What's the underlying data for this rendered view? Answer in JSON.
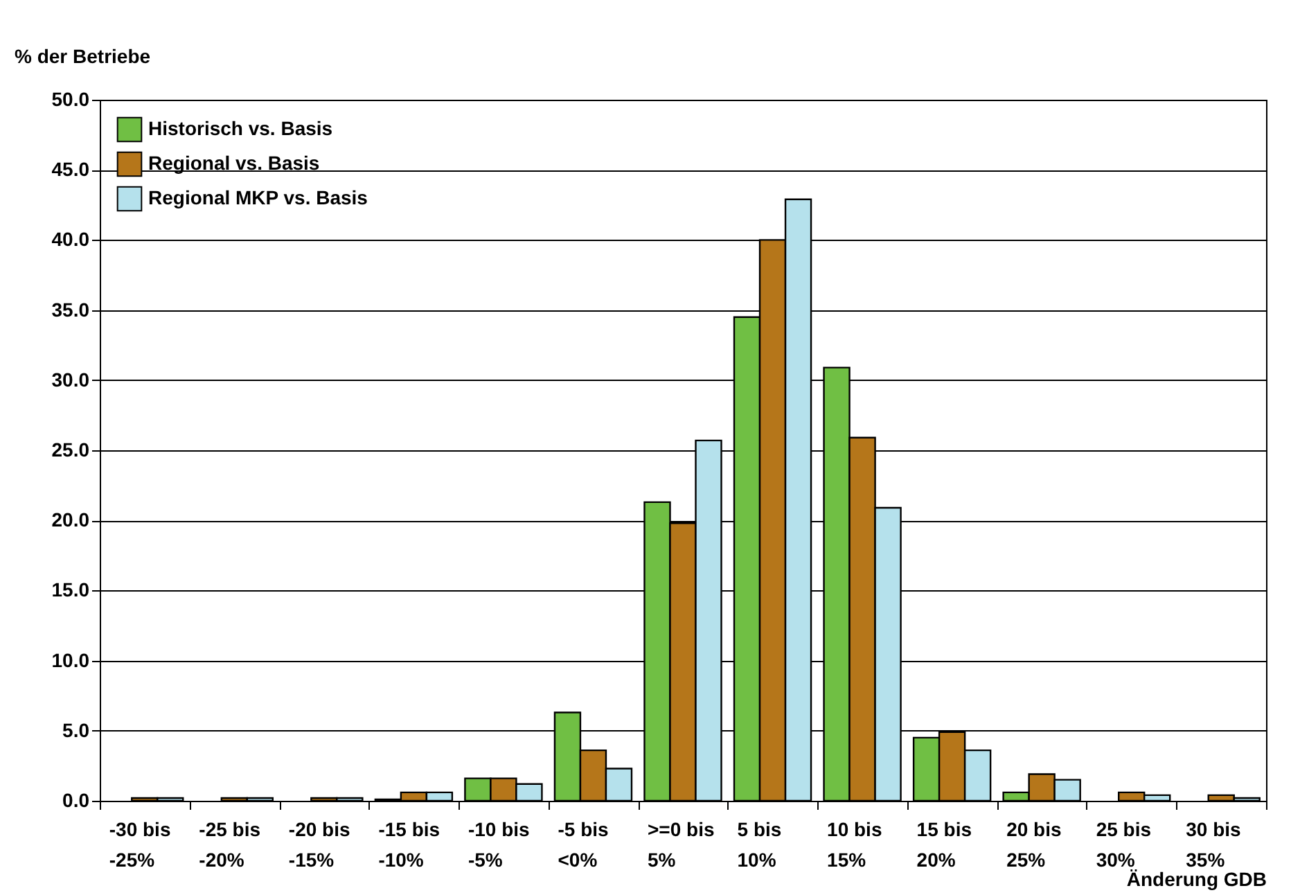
{
  "chart_data": {
    "type": "bar",
    "ylabel": "% der Betriebe",
    "xlabel": "Änderung GDB",
    "categories": [
      "-30 bis\n-25%",
      "-25 bis\n-20%",
      "-20 bis\n-15%",
      "-15 bis\n-10%",
      "-10 bis\n-5%",
      "-5 bis\n<0%",
      ">=0 bis\n5%",
      "5 bis\n10%",
      "10 bis\n15%",
      "15 bis\n20%",
      "20 bis\n25%",
      "25 bis\n30%",
      "30 bis\n35%"
    ],
    "series": [
      {
        "name": "Historisch vs. Basis",
        "color": "#70bf44",
        "values": [
          0,
          0,
          0,
          0.1,
          1.6,
          6.3,
          21.3,
          34.5,
          30.9,
          4.5,
          0.6,
          0,
          0
        ]
      },
      {
        "name": "Regional vs. Basis",
        "color": "#b5761a",
        "values": [
          0.2,
          0.2,
          0.2,
          0.6,
          1.6,
          3.6,
          19.8,
          40.0,
          25.9,
          4.9,
          1.9,
          0.6,
          0.4
        ]
      },
      {
        "name": "Regional MKP vs. Basis",
        "color": "#b5e1ec",
        "values": [
          0.2,
          0.2,
          0.2,
          0.6,
          1.2,
          2.3,
          25.7,
          42.9,
          20.9,
          3.6,
          1.5,
          0.4,
          0.2
        ]
      }
    ],
    "ylim": [
      0,
      50
    ],
    "yticks": [
      {
        "value": 0,
        "label": "0.0"
      },
      {
        "value": 5,
        "label": "5.0"
      },
      {
        "value": 10,
        "label": "10.0"
      },
      {
        "value": 15,
        "label": "15.0"
      },
      {
        "value": 20,
        "label": "20.0"
      },
      {
        "value": 25,
        "label": "25.0"
      },
      {
        "value": 30,
        "label": "30.0"
      },
      {
        "value": 35,
        "label": "35.0"
      },
      {
        "value": 40,
        "label": "40.0"
      },
      {
        "value": 45,
        "label": "45.0"
      },
      {
        "value": 50,
        "label": "50.0"
      }
    ],
    "grid": "y",
    "legend": "top left"
  }
}
